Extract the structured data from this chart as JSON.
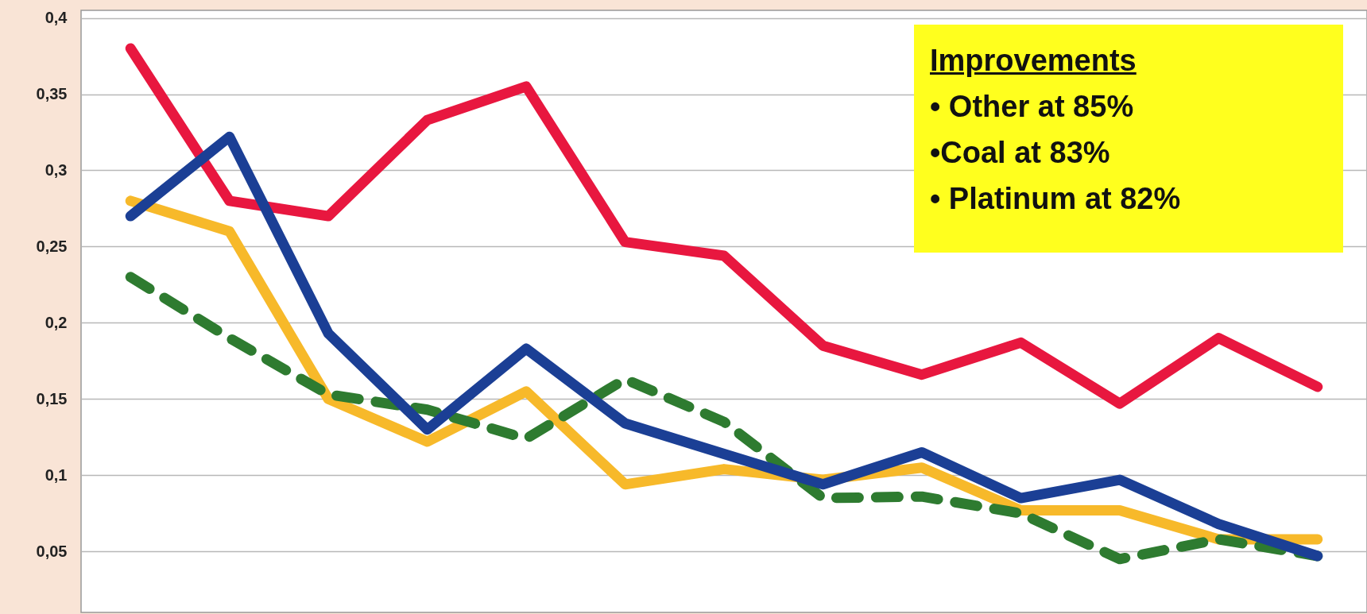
{
  "chart_data": {
    "type": "line",
    "categories": [
      null,
      null,
      null,
      null,
      null,
      null,
      null,
      null,
      null,
      null,
      null,
      null,
      null
    ],
    "series": [
      {
        "color": "#e8173f",
        "line_style": "solid",
        "values": [
          0.38,
          0.28,
          0.27,
          0.333,
          0.355,
          0.253,
          0.244,
          0.185,
          0.166,
          0.187,
          0.147,
          0.19,
          0.158
        ]
      },
      {
        "color": "#f7b92a",
        "line_style": "solid",
        "values": [
          0.28,
          0.26,
          0.15,
          0.122,
          0.155,
          0.094,
          0.104,
          0.097,
          0.105,
          0.077,
          0.077,
          0.058,
          0.058
        ]
      },
      {
        "color": "#2e7b30",
        "line_style": "dashed",
        "values": [
          0.23,
          0.19,
          0.153,
          0.143,
          0.124,
          0.163,
          0.135,
          0.085,
          0.086,
          0.075,
          0.045,
          0.058,
          0.047
        ]
      },
      {
        "color": "#1b3f95",
        "line_style": "solid",
        "values": [
          0.27,
          0.322,
          0.193,
          0.13,
          0.183,
          0.134,
          0.114,
          0.094,
          0.115,
          0.085,
          0.097,
          0.068,
          0.047
        ]
      }
    ],
    "ylim": [
      0.01,
      0.405
    ],
    "yticks": [
      {
        "value": 0.05,
        "label": "0,05"
      },
      {
        "value": 0.1,
        "label": "0,1"
      },
      {
        "value": 0.15,
        "label": "0,15"
      },
      {
        "value": 0.2,
        "label": "0,2"
      },
      {
        "value": 0.25,
        "label": "0,25"
      },
      {
        "value": 0.3,
        "label": "0,3"
      },
      {
        "value": 0.35,
        "label": "0,35"
      },
      {
        "value": 0.4,
        "label": "0,4"
      }
    ],
    "tick_labels": "y",
    "grid": "y",
    "marker": "none",
    "annotations": [
      "Improvements",
      "• Other at 85%",
      "•Coal at 83%",
      "• Platinum at 82%"
    ]
  }
}
